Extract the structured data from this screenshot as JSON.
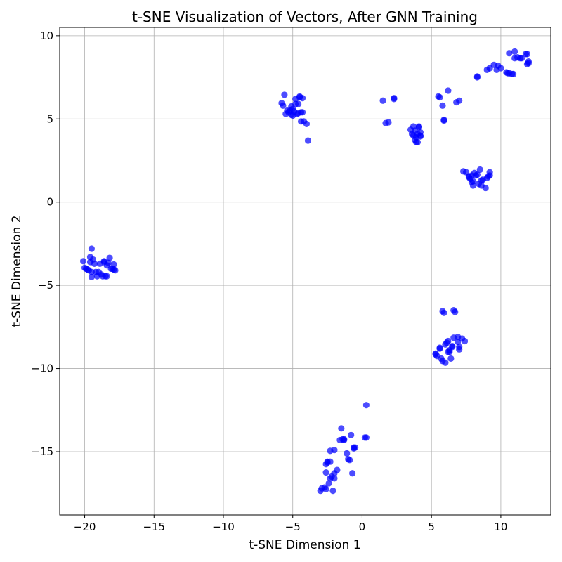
{
  "chart_data": {
    "type": "scatter",
    "title": "t-SNE Visualization of Vectors, After GNN Training",
    "xlabel": "t-SNE Dimension 1",
    "ylabel": "t-SNE Dimension 2",
    "xlim": [
      -21.8,
      13.6
    ],
    "ylim": [
      -18.8,
      10.5
    ],
    "xticks": [
      -20,
      -15,
      -10,
      -5,
      0,
      5,
      10
    ],
    "yticks": [
      -15,
      -10,
      -5,
      0,
      5,
      10
    ],
    "xtick_labels": [
      "−20",
      "−15",
      "−10",
      "−5",
      "0",
      "5",
      "10"
    ],
    "ytick_labels": [
      "−15",
      "−10",
      "−5",
      "0",
      "5",
      "10"
    ],
    "grid": true,
    "marker_color": "#0000ff",
    "marker_opacity": 0.7,
    "series": [
      {
        "x": [
          -20.1,
          -19.9,
          -19.6,
          -19.5,
          -19.6,
          -19.3,
          -19.5,
          -19.1,
          -18.8,
          -18.6,
          -18.4,
          -18.2,
          -17.9,
          -17.8,
          -18.1,
          -18.5,
          -18.9,
          -19.2,
          -19.5,
          -19.7,
          -20.0,
          -18.3,
          -18.7,
          -19.0,
          -18.4,
          -17.9,
          -19.4,
          -18.6,
          -19.8,
          -18.0
        ],
        "y": [
          -3.55,
          -4.0,
          -3.3,
          -2.8,
          -3.6,
          -3.7,
          -4.2,
          -4.45,
          -4.35,
          -3.6,
          -3.8,
          -3.35,
          -3.75,
          -4.1,
          -4.0,
          -4.45,
          -3.7,
          -4.2,
          -4.5,
          -4.1,
          -3.95,
          -3.65,
          -4.45,
          -4.2,
          -4.45,
          -4.05,
          -3.45,
          -3.55,
          -4.05,
          -4.0
        ]
      },
      {
        "x": [
          -5.8,
          -5.6,
          -5.5,
          -5.3,
          -5.1,
          -5.0,
          -4.8,
          -4.6,
          -4.5,
          -4.3,
          -4.3,
          -4.4,
          -4.6,
          -4.9,
          -5.1,
          -5.4,
          -4.2,
          -4.0,
          -4.4,
          -4.7,
          -5.2,
          -5.7,
          -3.9,
          -4.5,
          -4.8,
          -5.0
        ],
        "y": [
          5.95,
          6.45,
          5.3,
          5.4,
          5.75,
          5.2,
          6.2,
          5.9,
          6.35,
          6.25,
          5.4,
          4.85,
          5.35,
          5.45,
          5.25,
          5.5,
          4.85,
          4.7,
          5.4,
          5.3,
          5.5,
          5.8,
          3.7,
          6.3,
          5.9,
          5.6
        ],
        "_": ""
      },
      {
        "x": [
          1.5,
          1.7,
          1.9,
          2.3,
          2.3,
          3.5,
          3.7,
          3.8,
          3.9,
          4.0,
          4.1,
          4.2,
          4.2,
          4.0,
          3.8,
          3.6,
          3.9,
          4.1,
          3.7,
          4.2
        ],
        "y": [
          6.1,
          4.75,
          4.8,
          6.2,
          6.25,
          4.35,
          4.55,
          3.75,
          3.6,
          4.1,
          4.5,
          4.2,
          3.95,
          3.6,
          4.3,
          4.1,
          3.9,
          4.55,
          4.0,
          4.0
        ]
      },
      {
        "x": [
          5.6,
          5.8,
          5.9,
          6.2,
          6.8,
          7.0,
          5.5,
          5.9
        ],
        "y": [
          6.3,
          5.8,
          4.9,
          6.7,
          6.0,
          6.1,
          6.35,
          4.95
        ]
      },
      {
        "x": [
          8.3,
          8.3,
          9.0,
          9.2,
          9.5,
          9.8,
          10.0,
          10.4,
          10.6,
          10.9,
          11.0,
          11.2,
          11.5,
          11.8,
          11.9,
          12.0,
          11.9,
          11.4,
          10.8,
          10.5,
          9.7,
          11.0,
          10.6,
          12.0
        ],
        "y": [
          7.5,
          7.55,
          7.95,
          8.05,
          8.25,
          8.2,
          8.05,
          7.8,
          7.75,
          7.7,
          8.65,
          8.7,
          8.65,
          8.9,
          8.9,
          8.45,
          8.3,
          8.65,
          7.7,
          7.75,
          7.95,
          9.05,
          8.95,
          8.35
        ]
      },
      {
        "x": [
          7.3,
          7.5,
          7.7,
          7.8,
          7.9,
          8.0,
          8.1,
          8.2,
          8.4,
          8.5,
          8.6,
          8.7,
          8.9,
          9.0,
          9.1,
          9.2,
          9.2,
          8.6,
          8.3,
          7.9,
          7.7,
          8.0
        ],
        "y": [
          1.85,
          1.8,
          1.55,
          1.4,
          1.2,
          1.0,
          1.75,
          1.6,
          1.1,
          1.95,
          1.3,
          1.35,
          0.85,
          1.45,
          1.55,
          1.8,
          1.6,
          1.0,
          1.65,
          1.6,
          1.5,
          1.25
        ]
      },
      {
        "x": [
          5.3,
          5.4,
          5.6,
          5.7,
          5.8,
          5.9,
          6.0,
          6.1,
          6.2,
          6.3,
          6.4,
          6.5,
          6.6,
          6.7,
          6.9,
          7.0,
          7.2,
          7.4,
          6.9,
          6.6,
          6.3,
          6.0,
          5.8,
          5.6,
          5.3,
          6.2,
          6.5,
          7.0
        ],
        "y": [
          -9.1,
          -9.25,
          -8.75,
          -9.4,
          -6.55,
          -6.65,
          -9.65,
          -8.45,
          -8.35,
          -8.9,
          -9.4,
          -8.65,
          -6.5,
          -6.6,
          -8.1,
          -8.85,
          -8.2,
          -8.35,
          -8.4,
          -8.15,
          -9.0,
          -8.55,
          -9.55,
          -8.8,
          -9.15,
          -9.0,
          -8.7,
          -8.7
        ]
      },
      {
        "x": [
          0.3,
          0.2,
          0.3,
          -0.5,
          -0.6,
          -0.8,
          -1.1,
          -1.3,
          -1.6,
          -1.5,
          -1.3,
          -2.0,
          -2.3,
          -2.5,
          -2.6,
          -2.6,
          -2.3,
          -2.0,
          -1.8,
          -2.3,
          -2.4,
          -2.7,
          -2.9,
          -3.0,
          -2.6,
          -2.1,
          -0.9,
          -0.7,
          -1.4,
          -2.0,
          -2.5,
          -1.0,
          -0.6,
          -2.2
        ],
        "y": [
          -12.2,
          -14.15,
          -14.15,
          -14.75,
          -14.8,
          -14.0,
          -15.1,
          -14.25,
          -14.3,
          -13.6,
          -14.3,
          -14.9,
          -14.95,
          -15.6,
          -15.75,
          -16.25,
          -16.6,
          -16.3,
          -16.1,
          -15.6,
          -16.9,
          -17.15,
          -17.2,
          -17.35,
          -17.25,
          -17.35,
          -15.5,
          -16.3,
          -14.25,
          -16.6,
          -15.65,
          -15.45,
          -14.75,
          -16.5
        ]
      }
    ]
  }
}
